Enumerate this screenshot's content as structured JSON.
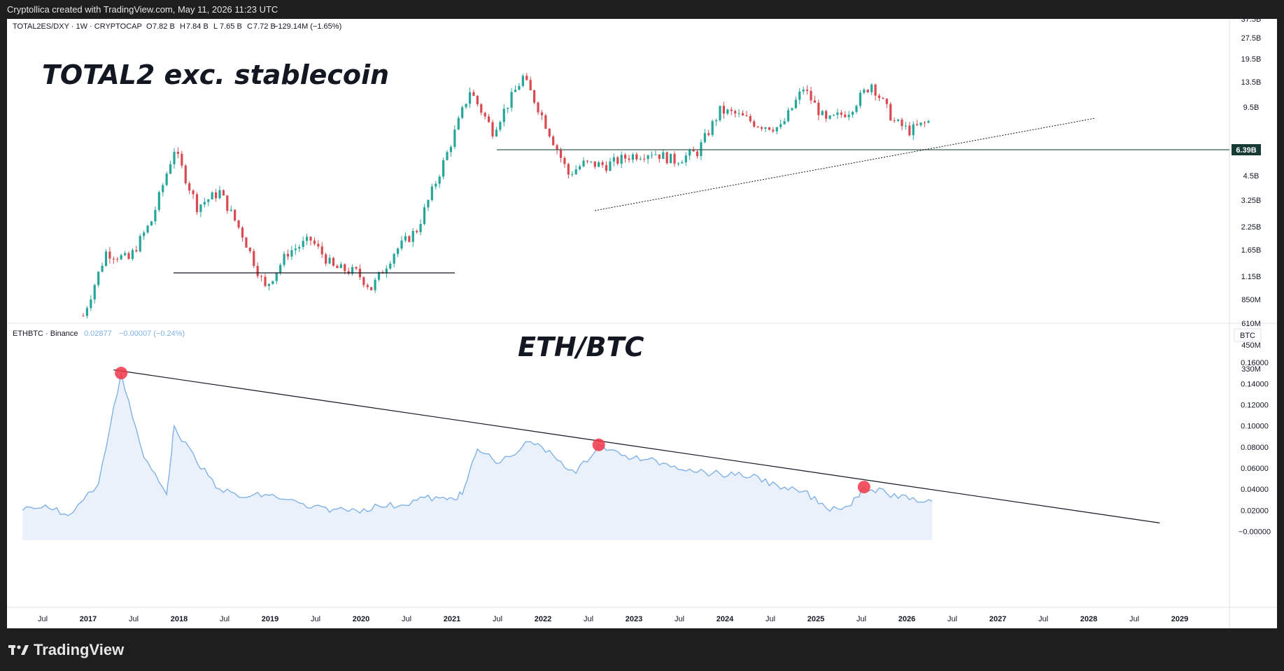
{
  "header": {
    "attribution": "Cryptollica created with TradingView.com, May 11, 2026 11:23 UTC"
  },
  "footer": {
    "brand": "TradingView"
  },
  "colors": {
    "up": "#26a69a",
    "down": "#d84a50",
    "line": "#7fb2e6",
    "fill": "#eaf1fb",
    "marker": "#f23645",
    "text": "#131722",
    "axis": "#e0e3eb"
  },
  "top_pane": {
    "symbol_line": "TOTAL2ES/DXY · 1W · CRYPTOCAP",
    "ohlc": [
      {
        "k": "O",
        "v": "7.82 B"
      },
      {
        "k": "H",
        "v": "7.84 B"
      },
      {
        "k": "L",
        "v": "7.65 B"
      },
      {
        "k": "C",
        "v": "7.72 B"
      }
    ],
    "change": "−129.14M (−1.65%)",
    "annotation": "TOTAL2 exc. stablecoin",
    "price_ticks": [
      "37.5B",
      "27.5B",
      "19.5B",
      "13.5B",
      "9.5B",
      "4.5B",
      "3.25B",
      "2.25B",
      "1.65B",
      "1.15B",
      "850M",
      "610M",
      "450M",
      "330M"
    ],
    "price_label": "6.39B"
  },
  "bottom_pane": {
    "symbol_line": "ETHBTC · Binance",
    "last": "0.02877",
    "change": "−0.00007 (−0.24%)",
    "annotation": "ETH/BTC",
    "unit": "BTC",
    "ticks": [
      "0.16000",
      "0.14000",
      "0.12000",
      "0.10000",
      "0.08000",
      "0.06000",
      "0.04000",
      "0.02000",
      "−0.00000"
    ]
  },
  "time_axis": [
    "Jul",
    "2017",
    "Jul",
    "2018",
    "Jul",
    "2019",
    "Jul",
    "2020",
    "Jul",
    "2021",
    "Jul",
    "2022",
    "Jul",
    "2023",
    "Jul",
    "2024",
    "Jul",
    "2025",
    "Jul",
    "2026",
    "Jul",
    "2027",
    "Jul",
    "2028",
    "Jul",
    "2029"
  ],
  "chart_data": [
    {
      "type": "candlestick",
      "title": "TOTAL2 exc. stablecoin",
      "symbol": "TOTAL2ES/DXY",
      "interval": "1W",
      "scale": "log",
      "x": [
        "2017-01",
        "2017-04",
        "2017-07",
        "2017-10",
        "2018-01",
        "2018-04",
        "2018-07",
        "2018-10",
        "2019-01",
        "2019-04",
        "2019-07",
        "2019-10",
        "2020-01",
        "2020-03",
        "2020-06",
        "2020-09",
        "2021-01",
        "2021-04",
        "2021-07",
        "2021-11",
        "2022-01",
        "2022-05",
        "2022-07",
        "2022-10",
        "2023-01",
        "2023-04",
        "2023-07",
        "2023-10",
        "2024-01",
        "2024-03",
        "2024-06",
        "2024-09",
        "2024-12",
        "2025-03",
        "2025-06",
        "2025-09",
        "2025-12",
        "2026-02",
        "2026-05"
      ],
      "close": [
        0.32,
        0.9,
        0.8,
        1.5,
        4.8,
        1.9,
        2.4,
        1.2,
        0.5,
        0.9,
        1.1,
        0.7,
        0.65,
        0.5,
        0.9,
        1.3,
        4.5,
        12.5,
        6.5,
        15.5,
        9.5,
        3.2,
        3.8,
        3.7,
        4.3,
        4.6,
        4.0,
        4.6,
        9.0,
        8.5,
        7.2,
        6.8,
        13.0,
        7.5,
        9.0,
        14.0,
        7.5,
        6.5,
        7.72
      ],
      "ylim_labels": [
        "330M",
        "37.5B"
      ],
      "annotations": [
        "6.39B horizontal level",
        "1.15B horizontal level",
        "ascending dotted trendline"
      ]
    },
    {
      "type": "area",
      "title": "ETH/BTC",
      "symbol": "ETHBTC",
      "exchange": "Binance",
      "x": [
        "2016-05",
        "2016-08",
        "2016-11",
        "2017-03",
        "2017-06",
        "2017-09",
        "2017-12",
        "2018-01",
        "2018-04",
        "2018-07",
        "2018-10",
        "2019-01",
        "2019-04",
        "2019-07",
        "2019-10",
        "2020-01",
        "2020-04",
        "2020-07",
        "2020-10",
        "2021-01",
        "2021-03",
        "2021-05",
        "2021-08",
        "2021-12",
        "2022-03",
        "2022-06",
        "2022-09",
        "2022-12",
        "2023-03",
        "2023-06",
        "2023-09",
        "2023-12",
        "2024-03",
        "2024-06",
        "2024-09",
        "2024-12",
        "2025-03",
        "2025-06",
        "2025-08",
        "2025-11",
        "2026-02",
        "2026-05"
      ],
      "values": [
        0.02,
        0.025,
        0.015,
        0.045,
        0.15,
        0.07,
        0.035,
        0.1,
        0.065,
        0.04,
        0.032,
        0.035,
        0.03,
        0.022,
        0.021,
        0.02,
        0.024,
        0.025,
        0.032,
        0.03,
        0.035,
        0.078,
        0.065,
        0.085,
        0.072,
        0.055,
        0.082,
        0.072,
        0.068,
        0.064,
        0.059,
        0.055,
        0.053,
        0.052,
        0.04,
        0.038,
        0.022,
        0.024,
        0.042,
        0.036,
        0.03,
        0.02877
      ],
      "ylim": [
        -0.005,
        0.17
      ],
      "ticks": [
        0.16,
        0.14,
        0.12,
        0.1,
        0.08,
        0.06,
        0.04,
        0.02,
        0.0
      ],
      "markers": [
        {
          "x": "2017-06",
          "y": 0.15
        },
        {
          "x": "2022-09",
          "y": 0.082
        },
        {
          "x": "2025-08",
          "y": 0.042
        }
      ],
      "trendline": {
        "from": {
          "x": "2017-05",
          "y": 0.153
        },
        "to": {
          "x": "2028-11",
          "y": 0.008
        }
      }
    }
  ]
}
